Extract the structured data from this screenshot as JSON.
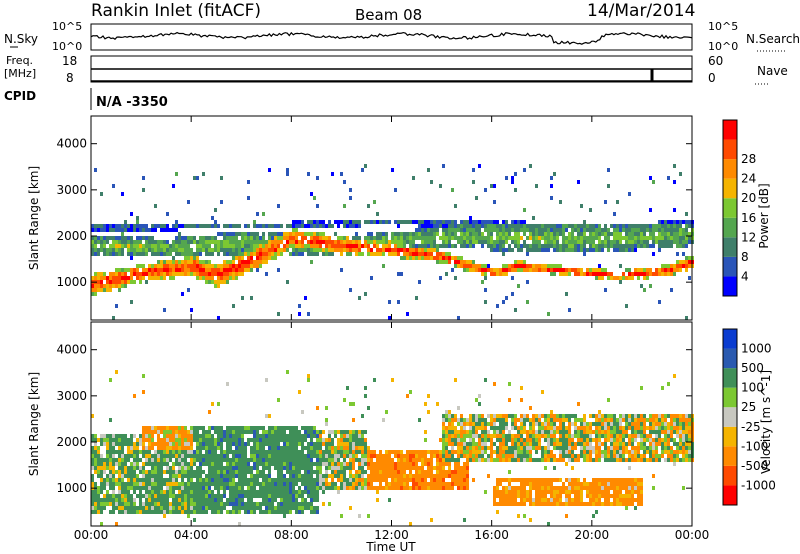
{
  "header": {
    "title": "Rankin Inlet (fitACF)",
    "beam": "Beam 08",
    "date": "14/Mar/2014"
  },
  "top_panels": {
    "nsky_label": "N.Sky",
    "nsearch_label": "N.Search",
    "nsky_ticks": [
      "10^5",
      "10^0"
    ],
    "nsearch_ticks": [
      "10^5",
      "10^0"
    ],
    "freq_label_1": "Freq.",
    "freq_label_2": "[MHz]",
    "freq_ticks": [
      "18",
      "8"
    ],
    "nave_label": "Nave",
    "nave_ticks": [
      "60",
      "0"
    ],
    "cpid_label": "CPID",
    "cpid_value": "N/A -3350"
  },
  "colors": {
    "power": [
      "#0000ff",
      "#2a55b8",
      "#3f7f6a",
      "#54a64f",
      "#7cc832",
      "#f5b400",
      "#ff8a00",
      "#ff4a00",
      "#ff0000"
    ],
    "velocity": [
      "#ff0000",
      "#ff4a00",
      "#ff8a00",
      "#f5b400",
      "#c8c8c0",
      "#7cc832",
      "#3f8f58",
      "#2a5ab0",
      "#0a3cd0"
    ]
  },
  "chart_data": [
    {
      "type": "heatmap",
      "panel": "power",
      "xlabel": "",
      "ylabel": "Slant Range [km]",
      "x_ticks": [
        "00:00",
        "04:00",
        "08:00",
        "12:00",
        "16:00",
        "20:00",
        "00:00"
      ],
      "y_ticks": [
        1000,
        2000,
        3000,
        4000
      ],
      "ylim": [
        180,
        4600
      ],
      "xlim_hours": [
        0,
        24
      ],
      "colorbar_label": "Power [dB]",
      "colorbar_ticks": [
        4,
        8,
        12,
        16,
        20,
        24,
        28
      ],
      "clim": [
        0,
        32
      ],
      "bands": [
        {
          "t": [
            0,
            2,
            4,
            5,
            7,
            8,
            10,
            12,
            14,
            16,
            17,
            19,
            21,
            23,
            24
          ],
          "center": [
            900,
            1150,
            1300,
            1100,
            1600,
            1900,
            1750,
            1650,
            1500,
            1150,
            1300,
            1200,
            1100,
            1200,
            1400
          ],
          "width": [
            450,
            380,
            420,
            500,
            480,
            400,
            380,
            300,
            250,
            200,
            220,
            200,
            200,
            250,
            300
          ],
          "level": 26
        },
        {
          "t": [
            0,
            3,
            6,
            9,
            12,
            15,
            18,
            21,
            24
          ],
          "center": [
            1750,
            1700,
            1800,
            1750,
            1850,
            1950,
            1900,
            1900,
            2000
          ],
          "width": [
            450,
            400,
            500,
            420,
            350,
            550,
            600,
            550,
            500
          ],
          "level": 13
        },
        {
          "t": [
            0,
            4,
            8,
            12,
            16,
            20,
            24
          ],
          "center": [
            2150,
            2150,
            2200,
            2250,
            2200,
            2150,
            2200
          ],
          "width": [
            150,
            120,
            120,
            120,
            150,
            150,
            150
          ],
          "level": 7
        }
      ]
    },
    {
      "type": "heatmap",
      "panel": "velocity",
      "xlabel": "Time UT",
      "ylabel": "Slant Range [km]",
      "x_ticks": [
        "00:00",
        "04:00",
        "08:00",
        "12:00",
        "16:00",
        "20:00",
        "00:00"
      ],
      "y_ticks": [
        1000,
        2000,
        3000,
        4000
      ],
      "ylim": [
        180,
        4600
      ],
      "xlim_hours": [
        0,
        24
      ],
      "colorbar_label": "Velocity [m s^-1]",
      "colorbar_ticks": [
        "1000",
        "500",
        "100",
        "25",
        "-25",
        "-100",
        "-500",
        "-1000"
      ],
      "segments": [
        {
          "t0": 0,
          "t1": 4,
          "range": [
            400,
            2100
          ],
          "velocity": 150
        },
        {
          "t0": 4,
          "t1": 9,
          "range": [
            400,
            2300
          ],
          "velocity": 300
        },
        {
          "t0": 9,
          "t1": 11,
          "range": [
            900,
            2200
          ],
          "velocity": 80
        },
        {
          "t0": 11,
          "t1": 15,
          "range": [
            900,
            1800
          ],
          "velocity": -300
        },
        {
          "t0": 14,
          "t1": 24,
          "range": [
            1500,
            2600
          ],
          "velocity": 0
        },
        {
          "t0": 16,
          "t1": 22,
          "range": [
            600,
            1200
          ],
          "velocity": -250
        },
        {
          "t0": 2,
          "t1": 4,
          "range": [
            1800,
            2300
          ],
          "velocity": -150
        }
      ]
    }
  ],
  "time_label": "Time UT"
}
